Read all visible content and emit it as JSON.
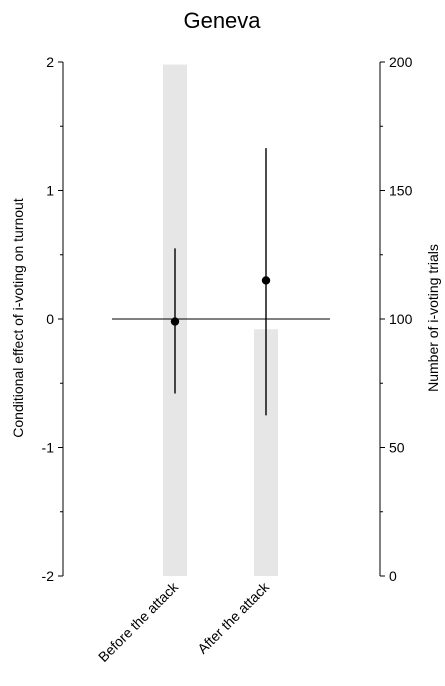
{
  "chart_data": {
    "type": "errorbar-with-bars",
    "title": "Geneva",
    "ylabel_left": "Conditional effect of i-voting on turnout",
    "ylabel_right": "Number of i-voting trials",
    "categories": [
      "Before the attack",
      "After the attack"
    ],
    "left_axis": {
      "range": [
        -2,
        2
      ],
      "major_ticks": [
        -2,
        -1,
        0,
        1,
        2
      ],
      "major_tick_labels": [
        "-2",
        "-1",
        "0",
        "1",
        "2"
      ],
      "minor_ticks": [
        -1.5,
        -0.5,
        0.5,
        1.5
      ]
    },
    "right_axis": {
      "range": [
        0,
        200
      ],
      "major_ticks": [
        0,
        50,
        100,
        150,
        200
      ],
      "major_tick_labels": [
        "0",
        "50",
        "100",
        "150",
        "200"
      ],
      "minor_ticks": [
        25,
        75,
        125,
        175
      ]
    },
    "bar_series": {
      "axis": "right",
      "color": "#e6e6e6",
      "values": [
        199,
        96
      ]
    },
    "point_series": {
      "axis": "left",
      "color": "#000000",
      "estimates": [
        -0.02,
        0.3
      ],
      "lower": [
        -0.58,
        -0.75
      ],
      "upper": [
        0.55,
        1.33
      ]
    },
    "reference_line": {
      "axis": "left",
      "value": 0
    },
    "grid": false,
    "legend": "none"
  }
}
